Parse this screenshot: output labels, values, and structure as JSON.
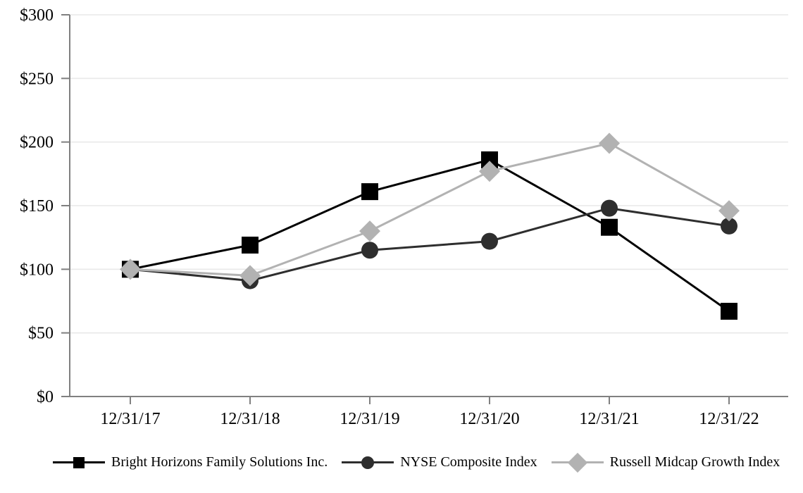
{
  "chart_data": {
    "type": "line",
    "title": "",
    "xlabel": "",
    "ylabel": "",
    "categories": [
      "12/31/17",
      "12/31/18",
      "12/31/19",
      "12/31/20",
      "12/31/21",
      "12/31/22"
    ],
    "series": [
      {
        "name": "Bright Horizons Family Solutions Inc.",
        "marker": "square",
        "color": "#000000",
        "values": [
          100,
          119,
          161,
          186,
          133,
          67
        ]
      },
      {
        "name": "NYSE Composite Index",
        "marker": "circle",
        "color": "#2e2e2e",
        "values": [
          100,
          91,
          115,
          122,
          148,
          134
        ]
      },
      {
        "name": "Russell Midcap Growth Index",
        "marker": "diamond",
        "color": "#b2b2b2",
        "values": [
          100,
          95,
          130,
          177,
          199,
          146
        ]
      }
    ],
    "y_ticks": [
      "$0",
      "$50",
      "$100",
      "$150",
      "$200",
      "$250",
      "$300"
    ],
    "ylim": [
      0,
      300
    ],
    "y_tick_step": 50,
    "grid": "horizontal",
    "legend_position": "bottom",
    "axis_color": "#808080",
    "grid_color": "#e9e9e9",
    "text_color": "#000000"
  }
}
